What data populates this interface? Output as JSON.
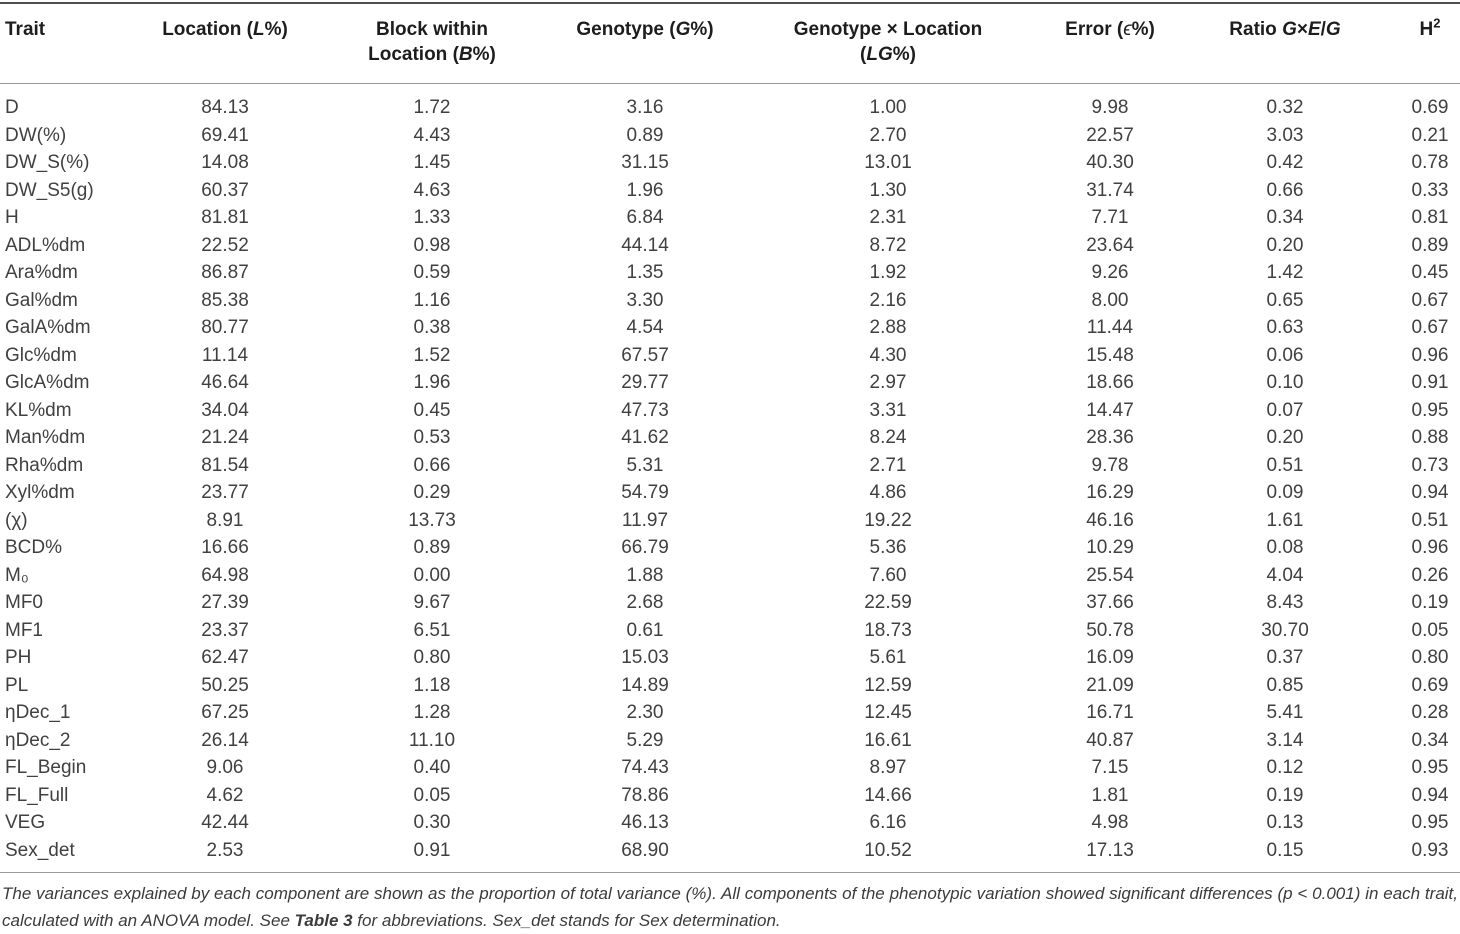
{
  "table": {
    "columns": [
      {
        "name": "trait",
        "align": "left",
        "segments": [
          {
            "t": "Trait"
          }
        ]
      },
      {
        "name": "location",
        "segments": [
          {
            "t": "Location ("
          },
          {
            "t": "L",
            "i": true
          },
          {
            "t": "%)"
          }
        ]
      },
      {
        "name": "block-within-location",
        "segments": [
          {
            "t": "Block within\nLocation ("
          },
          {
            "t": "B",
            "i": true
          },
          {
            "t": "%)"
          }
        ]
      },
      {
        "name": "genotype",
        "segments": [
          {
            "t": "Genotype ("
          },
          {
            "t": "G",
            "i": true
          },
          {
            "t": "%)"
          }
        ]
      },
      {
        "name": "genotype-x-location",
        "segments": [
          {
            "t": "Genotype × Location\n("
          },
          {
            "t": "LG",
            "i": true
          },
          {
            "t": "%)"
          }
        ]
      },
      {
        "name": "error",
        "segments": [
          {
            "t": "Error ("
          },
          {
            "t": "ϵ",
            "i": true,
            "rg": true
          },
          {
            "t": "%)"
          }
        ]
      },
      {
        "name": "ratio-gxe-g",
        "segments": [
          {
            "t": "Ratio "
          },
          {
            "t": "G",
            "i": true
          },
          {
            "t": "×"
          },
          {
            "t": "E",
            "i": true
          },
          {
            "t": "/"
          },
          {
            "t": "G",
            "i": true
          }
        ]
      },
      {
        "name": "h2",
        "segments": [
          {
            "t": "H"
          },
          {
            "t": "2",
            "sup": true
          }
        ]
      }
    ],
    "rows": [
      {
        "trait": "D",
        "values": [
          "84.13",
          "1.72",
          "3.16",
          "1.00",
          "9.98",
          "0.32",
          "0.69"
        ]
      },
      {
        "trait": "DW(%)",
        "values": [
          "69.41",
          "4.43",
          "0.89",
          "2.70",
          "22.57",
          "3.03",
          "0.21"
        ]
      },
      {
        "trait": "DW_S(%)",
        "values": [
          "14.08",
          "1.45",
          "31.15",
          "13.01",
          "40.30",
          "0.42",
          "0.78"
        ]
      },
      {
        "trait": "DW_S5(g)",
        "values": [
          "60.37",
          "4.63",
          "1.96",
          "1.30",
          "31.74",
          "0.66",
          "0.33"
        ]
      },
      {
        "trait": "H",
        "values": [
          "81.81",
          "1.33",
          "6.84",
          "2.31",
          "7.71",
          "0.34",
          "0.81"
        ]
      },
      {
        "trait": "ADL%dm",
        "values": [
          "22.52",
          "0.98",
          "44.14",
          "8.72",
          "23.64",
          "0.20",
          "0.89"
        ]
      },
      {
        "trait": "Ara%dm",
        "values": [
          "86.87",
          "0.59",
          "1.35",
          "1.92",
          "9.26",
          "1.42",
          "0.45"
        ]
      },
      {
        "trait": "Gal%dm",
        "values": [
          "85.38",
          "1.16",
          "3.30",
          "2.16",
          "8.00",
          "0.65",
          "0.67"
        ]
      },
      {
        "trait": "GalA%dm",
        "values": [
          "80.77",
          "0.38",
          "4.54",
          "2.88",
          "11.44",
          "0.63",
          "0.67"
        ]
      },
      {
        "trait": "Glc%dm",
        "values": [
          "11.14",
          "1.52",
          "67.57",
          "4.30",
          "15.48",
          "0.06",
          "0.96"
        ]
      },
      {
        "trait": "GlcA%dm",
        "values": [
          "46.64",
          "1.96",
          "29.77",
          "2.97",
          "18.66",
          "0.10",
          "0.91"
        ]
      },
      {
        "trait": "KL%dm",
        "values": [
          "34.04",
          "0.45",
          "47.73",
          "3.31",
          "14.47",
          "0.07",
          "0.95"
        ]
      },
      {
        "trait": "Man%dm",
        "values": [
          "21.24",
          "0.53",
          "41.62",
          "8.24",
          "28.36",
          "0.20",
          "0.88"
        ]
      },
      {
        "trait": "Rha%dm",
        "values": [
          "81.54",
          "0.66",
          "5.31",
          "2.71",
          "9.78",
          "0.51",
          "0.73"
        ]
      },
      {
        "trait": "Xyl%dm",
        "values": [
          "23.77",
          "0.29",
          "54.79",
          "4.86",
          "16.29",
          "0.09",
          "0.94"
        ]
      },
      {
        "trait": "(χ)",
        "values": [
          "8.91",
          "13.73",
          "11.97",
          "19.22",
          "46.16",
          "1.61",
          "0.51"
        ]
      },
      {
        "trait": "BCD%",
        "values": [
          "16.66",
          "0.89",
          "66.79",
          "5.36",
          "10.29",
          "0.08",
          "0.96"
        ]
      },
      {
        "trait": "M₀",
        "values": [
          "64.98",
          "0.00",
          "1.88",
          "7.60",
          "25.54",
          "4.04",
          "0.26"
        ]
      },
      {
        "trait": "MF0",
        "values": [
          "27.39",
          "9.67",
          "2.68",
          "22.59",
          "37.66",
          "8.43",
          "0.19"
        ]
      },
      {
        "trait": "MF1",
        "values": [
          "23.37",
          "6.51",
          "0.61",
          "18.73",
          "50.78",
          "30.70",
          "0.05"
        ]
      },
      {
        "trait": "PH",
        "values": [
          "62.47",
          "0.80",
          "15.03",
          "5.61",
          "16.09",
          "0.37",
          "0.80"
        ]
      },
      {
        "trait": "PL",
        "values": [
          "50.25",
          "1.18",
          "14.89",
          "12.59",
          "21.09",
          "0.85",
          "0.69"
        ]
      },
      {
        "trait": "ηDec_1",
        "values": [
          "67.25",
          "1.28",
          "2.30",
          "12.45",
          "16.71",
          "5.41",
          "0.28"
        ]
      },
      {
        "trait": "ηDec_2",
        "values": [
          "26.14",
          "11.10",
          "5.29",
          "16.61",
          "40.87",
          "3.14",
          "0.34"
        ]
      },
      {
        "trait": "FL_Begin",
        "values": [
          "9.06",
          "0.40",
          "74.43",
          "8.97",
          "7.15",
          "0.12",
          "0.95"
        ]
      },
      {
        "trait": "FL_Full",
        "values": [
          "4.62",
          "0.05",
          "78.86",
          "14.66",
          "1.81",
          "0.19",
          "0.94"
        ]
      },
      {
        "trait": "VEG",
        "values": [
          "42.44",
          "0.30",
          "46.13",
          "6.16",
          "4.98",
          "0.13",
          "0.95"
        ]
      },
      {
        "trait": "Sex_det",
        "values": [
          "2.53",
          "0.91",
          "68.90",
          "10.52",
          "17.13",
          "0.15",
          "0.93"
        ]
      }
    ]
  },
  "footnote": {
    "segments": [
      {
        "t": "The variances explained by each component are shown as the proportion of total variance (%). All components of the phenotypic variation showed significant differences (p < 0.001) in each trait, calculated with an ANOVA model. See "
      },
      {
        "t": "Table 3",
        "b": true
      },
      {
        "t": " for abbreviations. Sex_det stands for Sex determination."
      }
    ]
  }
}
